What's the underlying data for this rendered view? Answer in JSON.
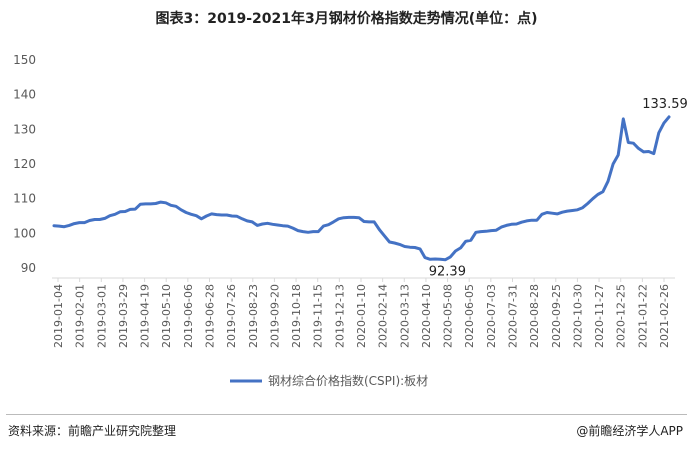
{
  "title": "图表3：2019-2021年3月钢材价格指数走势情况(单位：点)",
  "source": "资料来源：前瞻产业研究院整理",
  "credit": "@前瞻经济学人APP",
  "colors": {
    "line": "#4472c4",
    "axis": "#d9d9d9",
    "text": "#595959"
  },
  "chart_data": {
    "type": "line",
    "title": "图表3：2019-2021年3月钢材价格指数走势情况(单位：点)",
    "ylim": [
      90,
      150
    ],
    "yticks": [
      90,
      100,
      110,
      120,
      130,
      140,
      150
    ],
    "grid": false,
    "legend_position": "bottom",
    "xticklabels": [
      "2019-01-04",
      "2019-02-01",
      "2019-03-01",
      "2019-03-29",
      "2019-04-19",
      "2019-05-10",
      "2019-06-06",
      "2019-06-28",
      "2019-07-26",
      "2019-08-23",
      "2019-09-20",
      "2019-10-18",
      "2019-11-15",
      "2019-12-13",
      "2020-01-10",
      "2020-02-14",
      "2020-03-13",
      "2020-04-10",
      "2020-05-08",
      "2020-06-05",
      "2020-07-03",
      "2020-07-31",
      "2020-08-28",
      "2020-09-25",
      "2020-10-30",
      "2020-11-27",
      "2020-12-25",
      "2021-01-22",
      "2021-02-26"
    ],
    "series": [
      {
        "name": "钢材综合价格指数(CSPI):板材",
        "values": [
          102.2,
          102.1,
          101.9,
          102.3,
          102.8,
          103.1,
          103.1,
          103.7,
          104.0,
          104.0,
          104.3,
          105.1,
          105.5,
          106.2,
          106.3,
          106.9,
          107.0,
          108.4,
          108.5,
          108.5,
          108.6,
          109.0,
          108.8,
          108.1,
          107.8,
          106.8,
          106.0,
          105.5,
          105.1,
          104.2,
          105.0,
          105.6,
          105.4,
          105.3,
          105.3,
          105.0,
          104.9,
          104.2,
          103.6,
          103.3,
          102.3,
          102.7,
          102.9,
          102.6,
          102.4,
          102.2,
          102.1,
          101.5,
          100.8,
          100.5,
          100.3,
          100.5,
          100.5,
          102.1,
          102.5,
          103.3,
          104.2,
          104.5,
          104.6,
          104.6,
          104.5,
          103.4,
          103.3,
          103.3,
          101.1,
          99.3,
          97.5,
          97.2,
          96.8,
          96.2,
          96.0,
          95.9,
          95.5,
          93.0,
          92.5,
          92.6,
          92.5,
          92.39,
          93.2,
          94.9,
          95.8,
          97.7,
          98.0,
          100.3,
          100.5,
          100.6,
          100.8,
          100.9,
          101.8,
          102.3,
          102.6,
          102.7,
          103.2,
          103.6,
          103.8,
          103.8,
          105.5,
          106.0,
          105.8,
          105.6,
          106.1,
          106.4,
          106.6,
          106.8,
          107.4,
          108.6,
          110.0,
          111.2,
          112.0,
          115.0,
          120.0,
          122.6,
          133.0,
          126.2,
          126.0,
          124.5,
          123.5,
          123.6,
          123.0,
          129.0,
          131.8,
          133.59
        ]
      }
    ],
    "annotations": [
      {
        "label": "92.39",
        "value": 92.39
      },
      {
        "label": "133.59",
        "value": 133.59
      }
    ]
  }
}
